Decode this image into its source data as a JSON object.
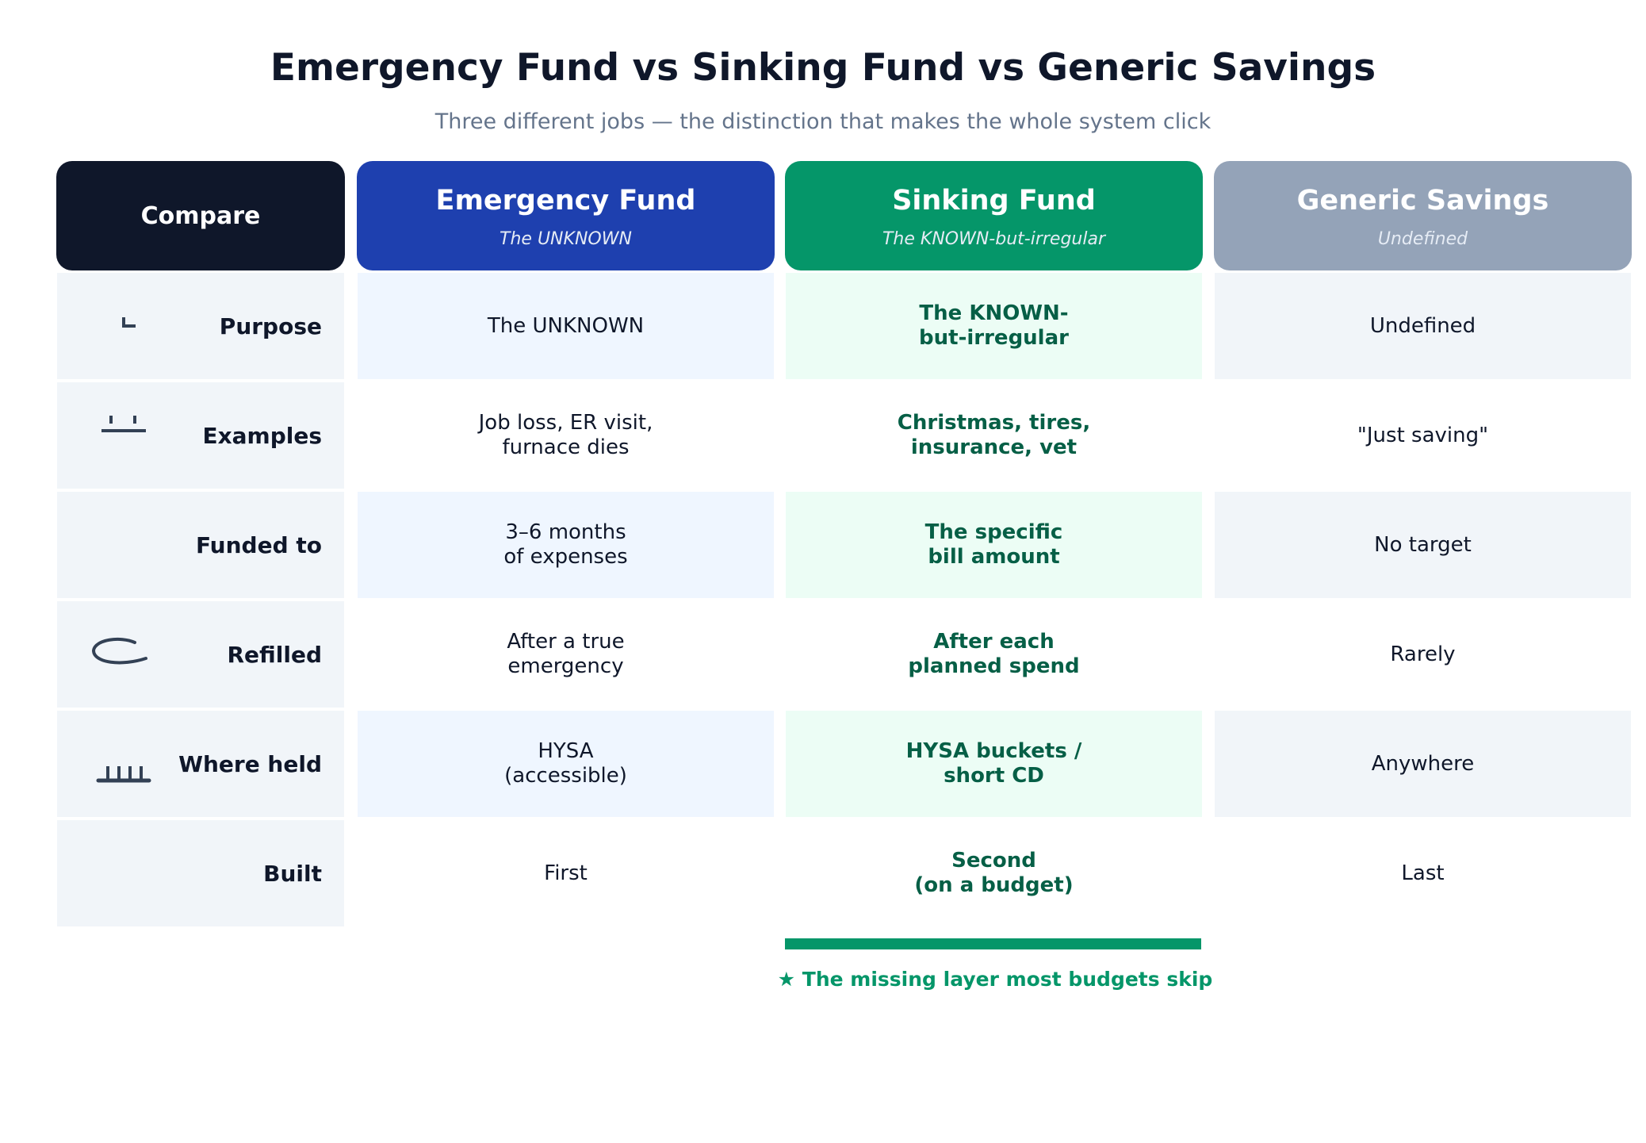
{
  "title": "Emergency Fund vs Sinking Fund vs Generic Savings",
  "subtitle": "Three different jobs — the distinction that makes the whole system click",
  "compare_header": "Compare",
  "columns": [
    {
      "title": "Emergency Fund",
      "subtitle": "The UNKNOWN",
      "color": "#1e40af",
      "tint": "#eff6ff"
    },
    {
      "title": "Sinking Fund",
      "subtitle": "The KNOWN-but-irregular",
      "color": "#059669",
      "tint": "#ecfdf5"
    },
    {
      "title": "Generic Savings",
      "subtitle": "Undefined",
      "color": "#94a3b8",
      "tint": "#f1f5f9"
    }
  ],
  "rows": [
    {
      "label": "Purpose",
      "icon": "corner-icon",
      "values": [
        "The UNKNOWN",
        "The KNOWN-\nbut-irregular",
        "Undefined"
      ]
    },
    {
      "label": "Examples",
      "icon": "calendar-icon",
      "values": [
        "Job loss, ER visit,\nfurnace dies",
        "Christmas, tires,\ninsurance, vet",
        "\"Just saving\""
      ]
    },
    {
      "label": "Funded to",
      "icon": "",
      "values": [
        "3–6 months\nof expenses",
        "The specific\nbill amount",
        "No target"
      ]
    },
    {
      "label": "Refilled",
      "icon": "refresh-icon",
      "values": [
        "After a true\nemergency",
        "After each\nplanned spend",
        "Rarely"
      ]
    },
    {
      "label": "Where held",
      "icon": "bank-icon",
      "values": [
        "HYSA\n(accessible)",
        "HYSA buckets /\nshort CD",
        "Anywhere"
      ]
    },
    {
      "label": "Built",
      "icon": "",
      "values": [
        "First",
        "Second\n(on a budget)",
        "Last"
      ]
    }
  ],
  "highlight_note": "★  The missing layer most budgets skip"
}
